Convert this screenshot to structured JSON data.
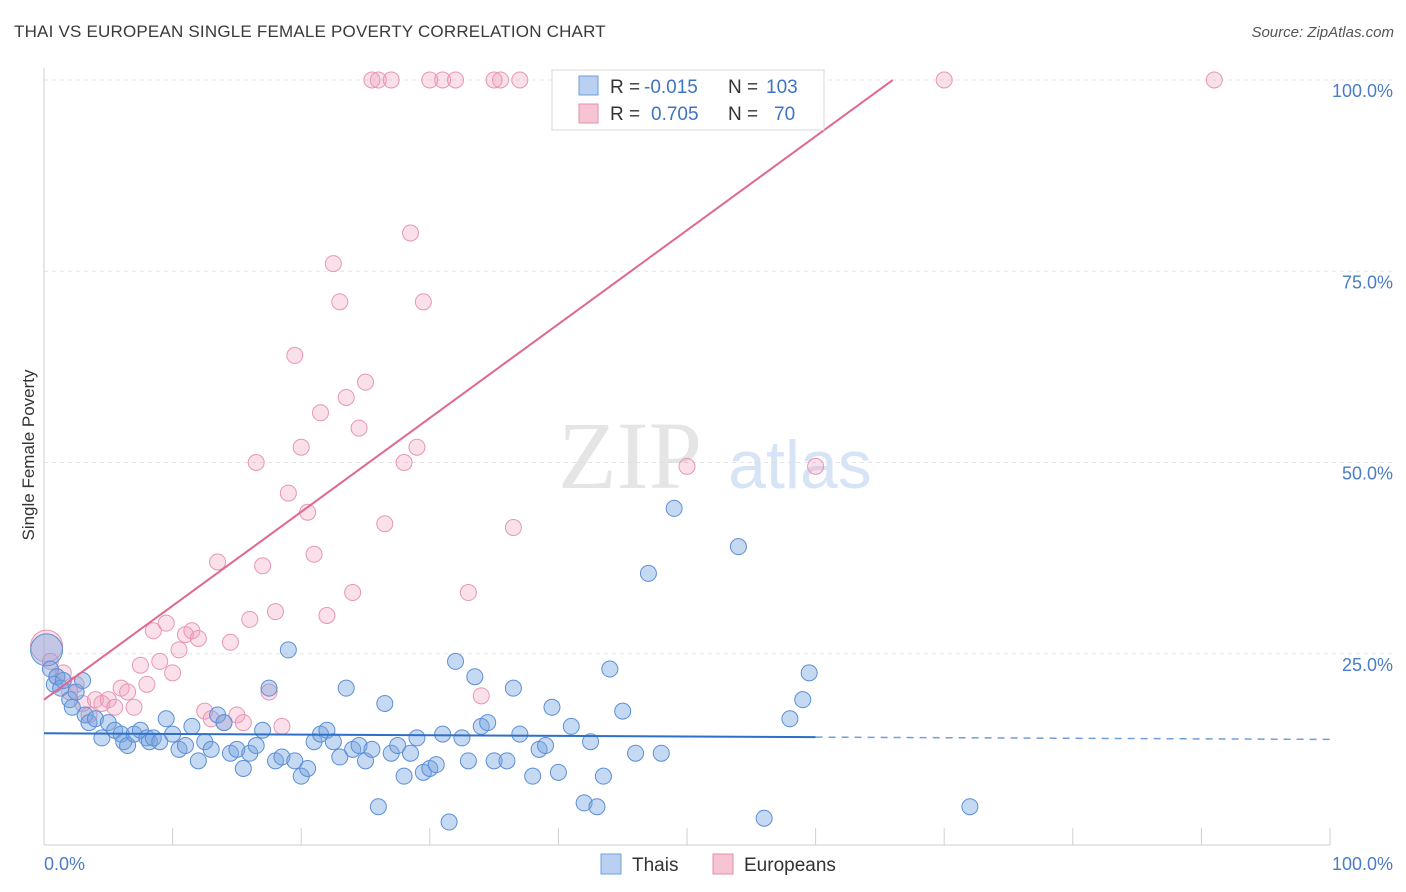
{
  "header": {
    "title": "THAI VS EUROPEAN SINGLE FEMALE POVERTY CORRELATION CHART",
    "source": "Source: ZipAtlas.com"
  },
  "watermark": {
    "zip": "ZIP",
    "atlas": "atlas"
  },
  "legend": {
    "thais": {
      "r_label": "R =",
      "r_value": "-0.015",
      "n_label": "N =",
      "n_value": "103",
      "color": "#6f9fdc",
      "fill": "#b9d0f0"
    },
    "europeans": {
      "r_label": "R =",
      "r_value": "0.705",
      "n_label": "N =",
      "n_value": "70",
      "color": "#e58fab",
      "fill": "#f6c4d3"
    }
  },
  "bottom_legend": {
    "thais": "Thais",
    "europeans": "Europeans"
  },
  "chart_data": {
    "type": "scatter",
    "title": "THAI VS EUROPEAN SINGLE FEMALE POVERTY CORRELATION CHART",
    "xlabel": "",
    "ylabel": "Single Female Poverty",
    "xlim": [
      0,
      100
    ],
    "ylim": [
      0,
      100
    ],
    "x_tick_labels": [
      "0.0%",
      "100.0%"
    ],
    "y_tick_labels": [
      "25.0%",
      "50.0%",
      "75.0%",
      "100.0%"
    ],
    "y_ticks": [
      25,
      50,
      75,
      100
    ],
    "grid": true,
    "legend_position": "top-center",
    "series": [
      {
        "name": "Thais",
        "color": "#5b8fd6",
        "trend": {
          "x0": 0,
          "y0": 14.6,
          "x1": 60,
          "y1": 14.1,
          "dashed_to": 100,
          "dashed_y": 13.8
        },
        "points": [
          [
            0.2,
            25.5
          ],
          [
            0.5,
            23
          ],
          [
            0.8,
            21
          ],
          [
            1,
            22
          ],
          [
            1.3,
            20.5
          ],
          [
            1.5,
            21.5
          ],
          [
            2,
            19
          ],
          [
            2.2,
            18
          ],
          [
            2.5,
            20
          ],
          [
            3,
            21.5
          ],
          [
            3.2,
            17
          ],
          [
            3.5,
            16
          ],
          [
            4,
            16.5
          ],
          [
            4.5,
            14
          ],
          [
            5,
            16
          ],
          [
            5.5,
            15
          ],
          [
            6,
            14.5
          ],
          [
            6.2,
            13.5
          ],
          [
            6.5,
            13
          ],
          [
            7,
            14.5
          ],
          [
            7.5,
            15
          ],
          [
            8,
            14
          ],
          [
            8.2,
            13.5
          ],
          [
            8.5,
            14
          ],
          [
            9,
            13.5
          ],
          [
            9.5,
            16.5
          ],
          [
            10,
            14.5
          ],
          [
            10.5,
            12.5
          ],
          [
            11,
            13
          ],
          [
            11.5,
            15.5
          ],
          [
            12,
            11
          ],
          [
            12.5,
            13.5
          ],
          [
            13,
            12.5
          ],
          [
            13.5,
            17
          ],
          [
            14,
            16
          ],
          [
            14.5,
            12
          ],
          [
            15,
            12.5
          ],
          [
            15.5,
            10
          ],
          [
            16,
            12
          ],
          [
            16.5,
            13
          ],
          [
            17,
            15
          ],
          [
            17.5,
            20.5
          ],
          [
            18,
            11
          ],
          [
            18.5,
            11.5
          ],
          [
            19,
            25.5
          ],
          [
            19.5,
            11
          ],
          [
            20,
            9
          ],
          [
            20.5,
            10
          ],
          [
            21,
            13.5
          ],
          [
            21.5,
            14.5
          ],
          [
            22,
            15
          ],
          [
            22.5,
            13.5
          ],
          [
            23,
            11.5
          ],
          [
            23.5,
            20.5
          ],
          [
            24,
            12.5
          ],
          [
            24.5,
            13
          ],
          [
            25,
            11
          ],
          [
            25.5,
            12.5
          ],
          [
            26,
            5
          ],
          [
            26.5,
            18.5
          ],
          [
            27,
            12
          ],
          [
            27.5,
            13
          ],
          [
            28,
            9
          ],
          [
            28.5,
            12
          ],
          [
            29,
            14
          ],
          [
            29.5,
            9.5
          ],
          [
            30,
            10
          ],
          [
            30.5,
            10.5
          ],
          [
            31,
            14.5
          ],
          [
            31.5,
            3
          ],
          [
            32,
            24
          ],
          [
            32.5,
            14
          ],
          [
            33,
            11
          ],
          [
            33.5,
            22
          ],
          [
            34,
            15.5
          ],
          [
            34.5,
            16
          ],
          [
            35,
            11
          ],
          [
            36,
            11
          ],
          [
            36.5,
            20.5
          ],
          [
            37,
            14.5
          ],
          [
            38,
            9
          ],
          [
            38.5,
            12.5
          ],
          [
            39,
            13
          ],
          [
            39.5,
            18
          ],
          [
            40,
            9.5
          ],
          [
            41,
            15.5
          ],
          [
            42,
            5.5
          ],
          [
            42.5,
            13.5
          ],
          [
            43,
            5
          ],
          [
            43.5,
            9
          ],
          [
            44,
            23
          ],
          [
            45,
            17.5
          ],
          [
            46,
            12
          ],
          [
            47,
            35.5
          ],
          [
            48,
            12
          ],
          [
            49,
            44
          ],
          [
            54,
            39
          ],
          [
            56,
            3.5
          ],
          [
            58,
            16.5
          ],
          [
            59,
            19
          ],
          [
            59.5,
            22.5
          ],
          [
            72,
            5
          ]
        ]
      },
      {
        "name": "Europeans",
        "color": "#e87fa3",
        "trend": {
          "x0": 0,
          "y0": 19,
          "x1": 66,
          "y1": 100
        },
        "points": [
          [
            0.2,
            26
          ],
          [
            0.5,
            24
          ],
          [
            1,
            22
          ],
          [
            1.5,
            22.5
          ],
          [
            2,
            20
          ],
          [
            2.5,
            21
          ],
          [
            3,
            18.5
          ],
          [
            3.5,
            17
          ],
          [
            4,
            19
          ],
          [
            4.5,
            18.5
          ],
          [
            5,
            19
          ],
          [
            5.5,
            18
          ],
          [
            6,
            20.5
          ],
          [
            6.5,
            20
          ],
          [
            7,
            18
          ],
          [
            7.5,
            23.5
          ],
          [
            8,
            21
          ],
          [
            8.5,
            28
          ],
          [
            9,
            24
          ],
          [
            9.5,
            29
          ],
          [
            10,
            22.5
          ],
          [
            10.5,
            25.5
          ],
          [
            11,
            27.5
          ],
          [
            11.5,
            28
          ],
          [
            12,
            27
          ],
          [
            12.5,
            17.5
          ],
          [
            13,
            16.5
          ],
          [
            13.5,
            37
          ],
          [
            14,
            16
          ],
          [
            14.5,
            26.5
          ],
          [
            15,
            17
          ],
          [
            15.5,
            16
          ],
          [
            16,
            29.5
          ],
          [
            16.5,
            50
          ],
          [
            17,
            36.5
          ],
          [
            17.5,
            20
          ],
          [
            18,
            30.5
          ],
          [
            18.5,
            15.5
          ],
          [
            19,
            46
          ],
          [
            19.5,
            64
          ],
          [
            20,
            52
          ],
          [
            20.5,
            43.5
          ],
          [
            21,
            38
          ],
          [
            21.5,
            56.5
          ],
          [
            22,
            30
          ],
          [
            22.5,
            76
          ],
          [
            23,
            71
          ],
          [
            23.5,
            58.5
          ],
          [
            24,
            33
          ],
          [
            24.5,
            54.5
          ],
          [
            25,
            60.5
          ],
          [
            25.5,
            100
          ],
          [
            26,
            100
          ],
          [
            26.5,
            42
          ],
          [
            27,
            100
          ],
          [
            28,
            50
          ],
          [
            28.5,
            80
          ],
          [
            29,
            52
          ],
          [
            29.5,
            71
          ],
          [
            30,
            100
          ],
          [
            31,
            100
          ],
          [
            32,
            100
          ],
          [
            33,
            33
          ],
          [
            34,
            19.5
          ],
          [
            35,
            100
          ],
          [
            35.5,
            100
          ],
          [
            36.5,
            41.5
          ],
          [
            37,
            100
          ],
          [
            50,
            49.5
          ],
          [
            60,
            49.5
          ],
          [
            70,
            100
          ],
          [
            91,
            100
          ]
        ]
      }
    ]
  }
}
